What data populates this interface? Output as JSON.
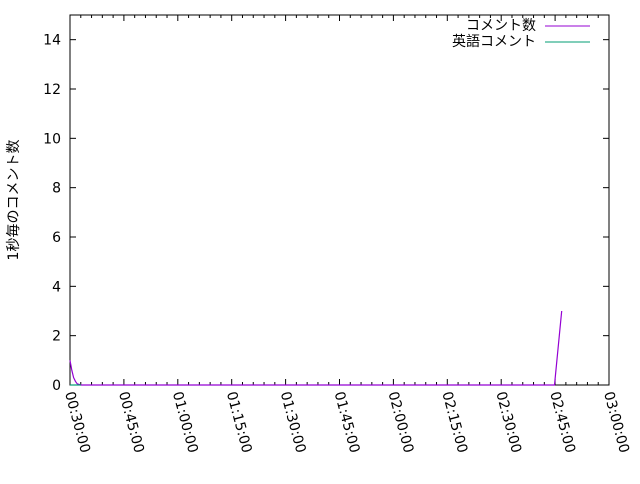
{
  "chart_data": {
    "type": "line",
    "title": "",
    "xlabel": "",
    "ylabel": "1秒毎のコメント数",
    "xlim": [
      "00:30:00",
      "03:00:00"
    ],
    "ylim": [
      0,
      15
    ],
    "x_ticks": [
      "00:30:00",
      "00:45:00",
      "01:00:00",
      "01:15:00",
      "01:30:00",
      "01:45:00",
      "02:00:00",
      "02:15:00",
      "02:30:00",
      "02:45:00",
      "03:00:00"
    ],
    "y_ticks": [
      0,
      2,
      4,
      6,
      8,
      10,
      12,
      14
    ],
    "grid": false,
    "legend_position": "top-right",
    "series": [
      {
        "name": "コメント数",
        "color": "#9400d3",
        "points": [
          [
            "00:30:00",
            1
          ],
          [
            "00:30:30",
            0.6
          ],
          [
            "00:31:00",
            0.3
          ],
          [
            "00:31:30",
            0.15
          ],
          [
            "00:32:00",
            0.05
          ],
          [
            "00:33:00",
            0
          ],
          [
            "02:44:50",
            0
          ],
          [
            "02:45:10",
            0.5
          ],
          [
            "02:45:30",
            1
          ],
          [
            "02:45:50",
            1.5
          ],
          [
            "02:46:10",
            2
          ],
          [
            "02:46:30",
            2.5
          ],
          [
            "02:46:50",
            3
          ]
        ]
      },
      {
        "name": "英語コメント",
        "color": "#009e73",
        "points": [
          [
            "00:30:00",
            0
          ],
          [
            "00:33:00",
            0
          ]
        ]
      }
    ]
  }
}
